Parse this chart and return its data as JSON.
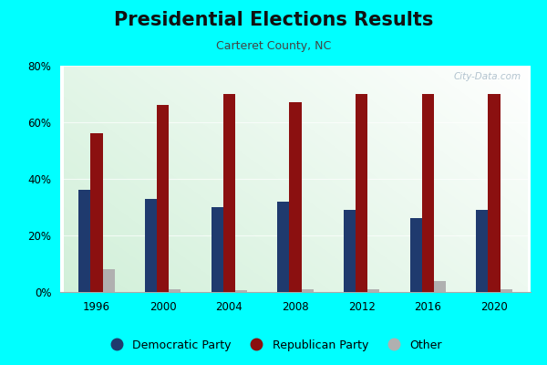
{
  "title": "Presidential Elections Results",
  "subtitle": "Carteret County, NC",
  "years": [
    1996,
    2000,
    2004,
    2008,
    2012,
    2016,
    2020
  ],
  "democratic": [
    36,
    33,
    30,
    32,
    29,
    26,
    29
  ],
  "republican": [
    56,
    66,
    70,
    67,
    70,
    70,
    70
  ],
  "other": [
    8,
    1,
    0.5,
    1,
    1,
    4,
    1
  ],
  "dem_color": "#1f3a6e",
  "rep_color": "#8b1010",
  "other_color": "#b0b0b0",
  "outer_bg": "#00ffff",
  "ylim": [
    0,
    80
  ],
  "yticks": [
    0,
    20,
    40,
    60,
    80
  ],
  "ytick_labels": [
    "0%",
    "20%",
    "40%",
    "60%",
    "80%"
  ],
  "bar_width": 0.18,
  "title_fontsize": 15,
  "subtitle_fontsize": 9,
  "legend_fontsize": 9,
  "watermark": "City-Data.com"
}
